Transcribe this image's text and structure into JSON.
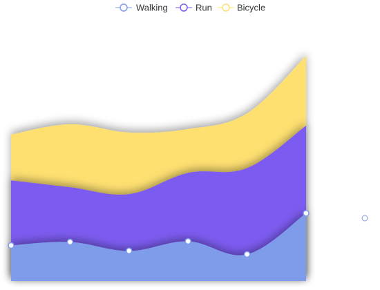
{
  "chart_data": {
    "type": "area",
    "stacked": true,
    "smooth": true,
    "categories": [
      "",
      "",
      "",
      "",
      "",
      ""
    ],
    "series": [
      {
        "name": "Walking",
        "values": [
          52,
          57,
          44,
          58,
          39,
          99
        ],
        "color": "#7F9CEB"
      },
      {
        "name": "Run",
        "values": [
          95,
          80,
          83,
          100,
          126,
          128
        ],
        "color": "#7B5BF0"
      },
      {
        "name": "Bicycle",
        "values": [
          67,
          92,
          90,
          64,
          80,
          102
        ],
        "color": "#FEE071"
      }
    ],
    "ylim": [
      0,
      350
    ],
    "grid": false,
    "legend_position": "top-center"
  },
  "legend": {
    "items": [
      {
        "label": "Walking",
        "color": "#7F9CEB"
      },
      {
        "label": "Run",
        "color": "#7B5BF0"
      },
      {
        "label": "Bicycle",
        "color": "#FEE071"
      }
    ]
  }
}
